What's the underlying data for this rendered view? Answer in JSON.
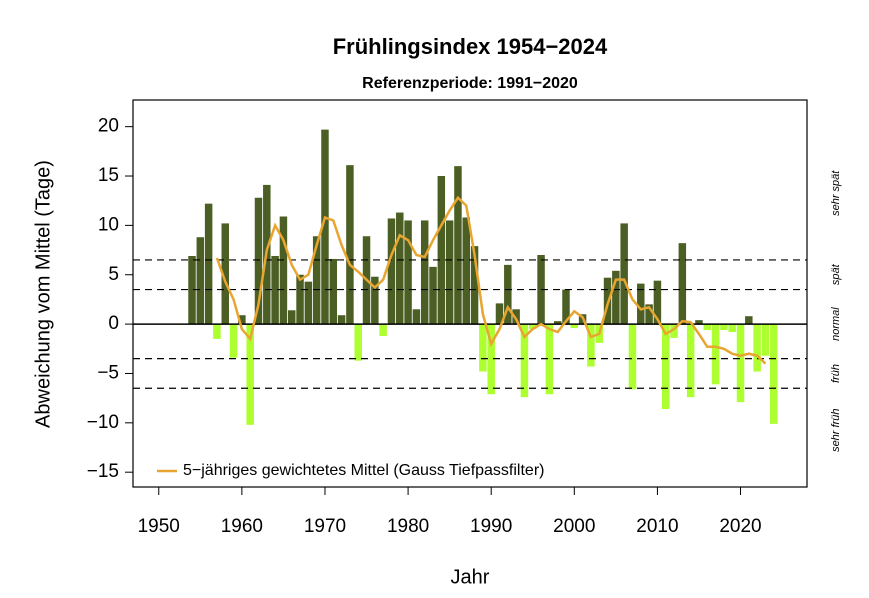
{
  "chart_data": {
    "type": "bar",
    "title": "Frühlingsindex 1954−2024",
    "subtitle": "Referenzperiode: 1991−2020",
    "x_label": "Jahr",
    "y_label": "Abweichung vom Mittel (Tage)",
    "x": [
      1954,
      1955,
      1956,
      1957,
      1958,
      1959,
      1960,
      1961,
      1962,
      1963,
      1964,
      1965,
      1966,
      1967,
      1968,
      1969,
      1970,
      1971,
      1972,
      1973,
      1974,
      1975,
      1976,
      1977,
      1978,
      1979,
      1980,
      1981,
      1982,
      1983,
      1984,
      1985,
      1986,
      1987,
      1988,
      1989,
      1990,
      1991,
      1992,
      1993,
      1994,
      1995,
      1996,
      1997,
      1998,
      1999,
      2000,
      2001,
      2002,
      2003,
      2004,
      2005,
      2006,
      2007,
      2008,
      2009,
      2010,
      2011,
      2012,
      2013,
      2014,
      2015,
      2016,
      2017,
      2018,
      2019,
      2020,
      2021,
      2022,
      2023,
      2024
    ],
    "values": [
      6.9,
      8.8,
      12.2,
      -1.5,
      10.2,
      -3.4,
      0.9,
      -10.2,
      12.8,
      14.1,
      6.9,
      10.9,
      1.4,
      5.0,
      4.3,
      8.9,
      19.7,
      6.6,
      0.9,
      16.1,
      -3.7,
      8.9,
      4.8,
      -1.2,
      10.7,
      11.3,
      10.5,
      1.5,
      10.5,
      5.8,
      15.0,
      10.5,
      16.0,
      10.8,
      7.9,
      -4.8,
      -7.1,
      2.1,
      6.0,
      1.5,
      -7.4,
      -0.5,
      7.0,
      -7.1,
      0.3,
      3.5,
      -0.4,
      1.0,
      -4.3,
      -1.9,
      4.7,
      5.4,
      10.2,
      -6.6,
      4.1,
      2.0,
      4.4,
      -8.6,
      -1.4,
      8.2,
      -7.4,
      0.4,
      -0.6,
      -6.1,
      -0.6,
      -0.8,
      -7.9,
      0.8,
      -4.8,
      -3.2,
      -10.1
    ],
    "positive_color": "#4b5e23",
    "negative_color": "#adff2f",
    "line": {
      "name": "5−jähriges gewichtetes Mittel (Gauss Tiefpassfilter)",
      "color": "#e8a530",
      "x": [
        1957,
        1958,
        1959,
        1960,
        1961,
        1962,
        1963,
        1964,
        1965,
        1966,
        1967,
        1968,
        1969,
        1970,
        1971,
        1972,
        1973,
        1974,
        1975,
        1976,
        1977,
        1978,
        1979,
        1980,
        1981,
        1982,
        1983,
        1984,
        1985,
        1986,
        1987,
        1988,
        1989,
        1990,
        1991,
        1992,
        1993,
        1994,
        1995,
        1996,
        1997,
        1998,
        1999,
        2000,
        2001,
        2002,
        2003,
        2004,
        2005,
        2006,
        2007,
        2008,
        2009,
        2010,
        2011,
        2012,
        2013,
        2014,
        2015,
        2016,
        2017,
        2018,
        2019,
        2020,
        2021,
        2022,
        2023
      ],
      "values": [
        6.7,
        4.3,
        2.5,
        -0.5,
        -1.5,
        2.0,
        7.5,
        10.0,
        8.5,
        6.0,
        4.5,
        5.0,
        8.0,
        10.8,
        10.5,
        8.0,
        6.0,
        5.3,
        4.5,
        3.7,
        4.5,
        7.0,
        9.0,
        8.5,
        7.0,
        6.8,
        8.5,
        10.0,
        11.5,
        12.8,
        12.0,
        7.0,
        1.0,
        -2.0,
        -0.5,
        1.7,
        0.5,
        -1.3,
        -0.5,
        0.0,
        -0.5,
        -0.8,
        0.3,
        1.3,
        0.7,
        -1.3,
        -1.0,
        2.0,
        4.5,
        4.5,
        2.5,
        1.5,
        1.7,
        0.5,
        -1.0,
        -0.5,
        0.3,
        0.2,
        -1.0,
        -2.3,
        -2.3,
        -2.5,
        -3.0,
        -3.2,
        -3.0,
        -3.2,
        -4.0
      ]
    },
    "reference_lines": [
      6.5,
      3.5,
      -3.5,
      -6.5
    ],
    "zones": [
      "sehr spät",
      "spät",
      "normal",
      "früh",
      "sehr früh"
    ],
    "xlim": [
      1946.9,
      2028
    ],
    "ylim": [
      -16.5,
      22.7
    ],
    "xticks": [
      1950,
      1960,
      1970,
      1980,
      1990,
      2000,
      2010,
      2020
    ],
    "yticks": [
      {
        "value": -15,
        "label": "−15"
      },
      {
        "value": -10,
        "label": "−10"
      },
      {
        "value": -5,
        "label": "−5"
      },
      0,
      5,
      10,
      15,
      20
    ],
    "legend": "bottom-left"
  }
}
